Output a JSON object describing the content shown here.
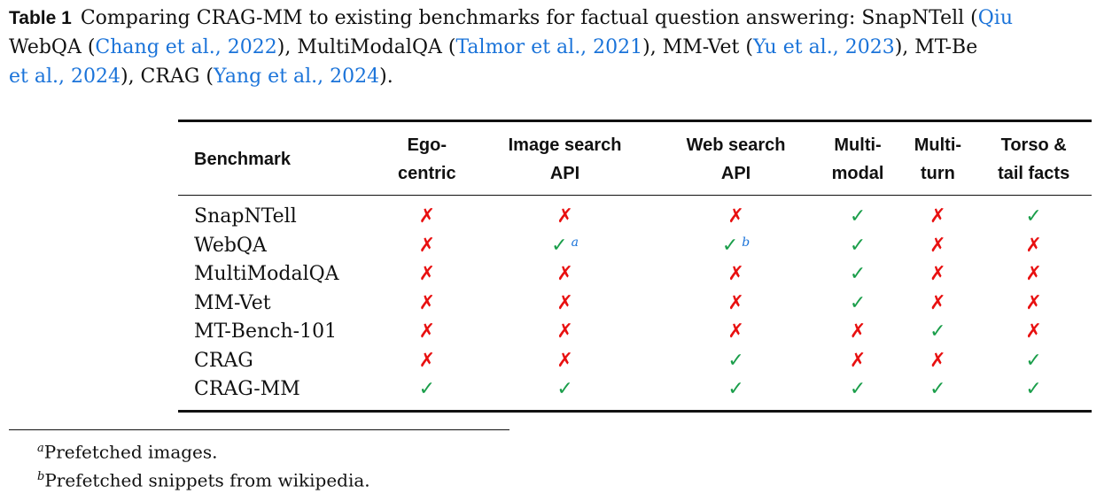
{
  "caption": {
    "label": "Table 1",
    "line1_text": "Comparing CRAG-MM to existing benchmarks for factual question answering: SnapNTell (",
    "line1_link": "Qiu",
    "line2_a": "WebQA (",
    "line2_link1": "Chang et al., 2022",
    "line2_b": "), MultiModalQA (",
    "line2_link2": "Talmor et al., 2021",
    "line2_c": "), MM-Vet (",
    "line2_link3": "Yu et al., 2023",
    "line2_d": "), MT-Be",
    "line3_link1": "et al., 2024",
    "line3_a": "), CRAG (",
    "line3_link2": "Yang et al., 2024",
    "line3_b": ")."
  },
  "table": {
    "headers": [
      "Benchmark",
      "Ego-\ncentric",
      "Image search\nAPI",
      "Web search\nAPI",
      "Multi-\nmodal",
      "Multi-\nturn",
      "Torso &\ntail facts"
    ],
    "header_lines": [
      [
        "Benchmark"
      ],
      [
        "Ego-",
        "centric"
      ],
      [
        "Image search",
        "API"
      ],
      [
        "Web search",
        "API"
      ],
      [
        "Multi-",
        "modal"
      ],
      [
        "Multi-",
        "turn"
      ],
      [
        "Torso &",
        "tail facts"
      ]
    ],
    "symbols": {
      "yes": "✓",
      "no": "✗"
    },
    "colors": {
      "yes": "#1a9e4a",
      "no": "#e81010",
      "link": "#1a73d9"
    },
    "rows": [
      {
        "name": "SnapNTell",
        "cells": [
          "no",
          "no",
          "no",
          "yes",
          "no",
          "yes"
        ],
        "marks": [
          "",
          "",
          "",
          "",
          "",
          ""
        ]
      },
      {
        "name": "WebQA",
        "cells": [
          "no",
          "yes",
          "yes",
          "yes",
          "no",
          "no"
        ],
        "marks": [
          "",
          "a",
          "b",
          "",
          "",
          ""
        ]
      },
      {
        "name": "MultiModalQA",
        "cells": [
          "no",
          "no",
          "no",
          "yes",
          "no",
          "no"
        ],
        "marks": [
          "",
          "",
          "",
          "",
          "",
          ""
        ]
      },
      {
        "name": "MM-Vet",
        "cells": [
          "no",
          "no",
          "no",
          "yes",
          "no",
          "no"
        ],
        "marks": [
          "",
          "",
          "",
          "",
          "",
          ""
        ]
      },
      {
        "name": "MT-Bench-101",
        "cells": [
          "no",
          "no",
          "no",
          "no",
          "yes",
          "no"
        ],
        "marks": [
          "",
          "",
          "",
          "",
          "",
          ""
        ]
      },
      {
        "name": "CRAG",
        "cells": [
          "no",
          "no",
          "yes",
          "no",
          "no",
          "yes"
        ],
        "marks": [
          "",
          "",
          "",
          "",
          "",
          ""
        ]
      },
      {
        "name": "CRAG-MM",
        "cells": [
          "yes",
          "yes",
          "yes",
          "yes",
          "yes",
          "yes"
        ],
        "marks": [
          "",
          "",
          "",
          "",
          "",
          ""
        ]
      }
    ]
  },
  "footnotes": [
    {
      "mark": "a",
      "text": "Prefetched images."
    },
    {
      "mark": "b",
      "text": "Prefetched snippets from wikipedia."
    }
  ]
}
